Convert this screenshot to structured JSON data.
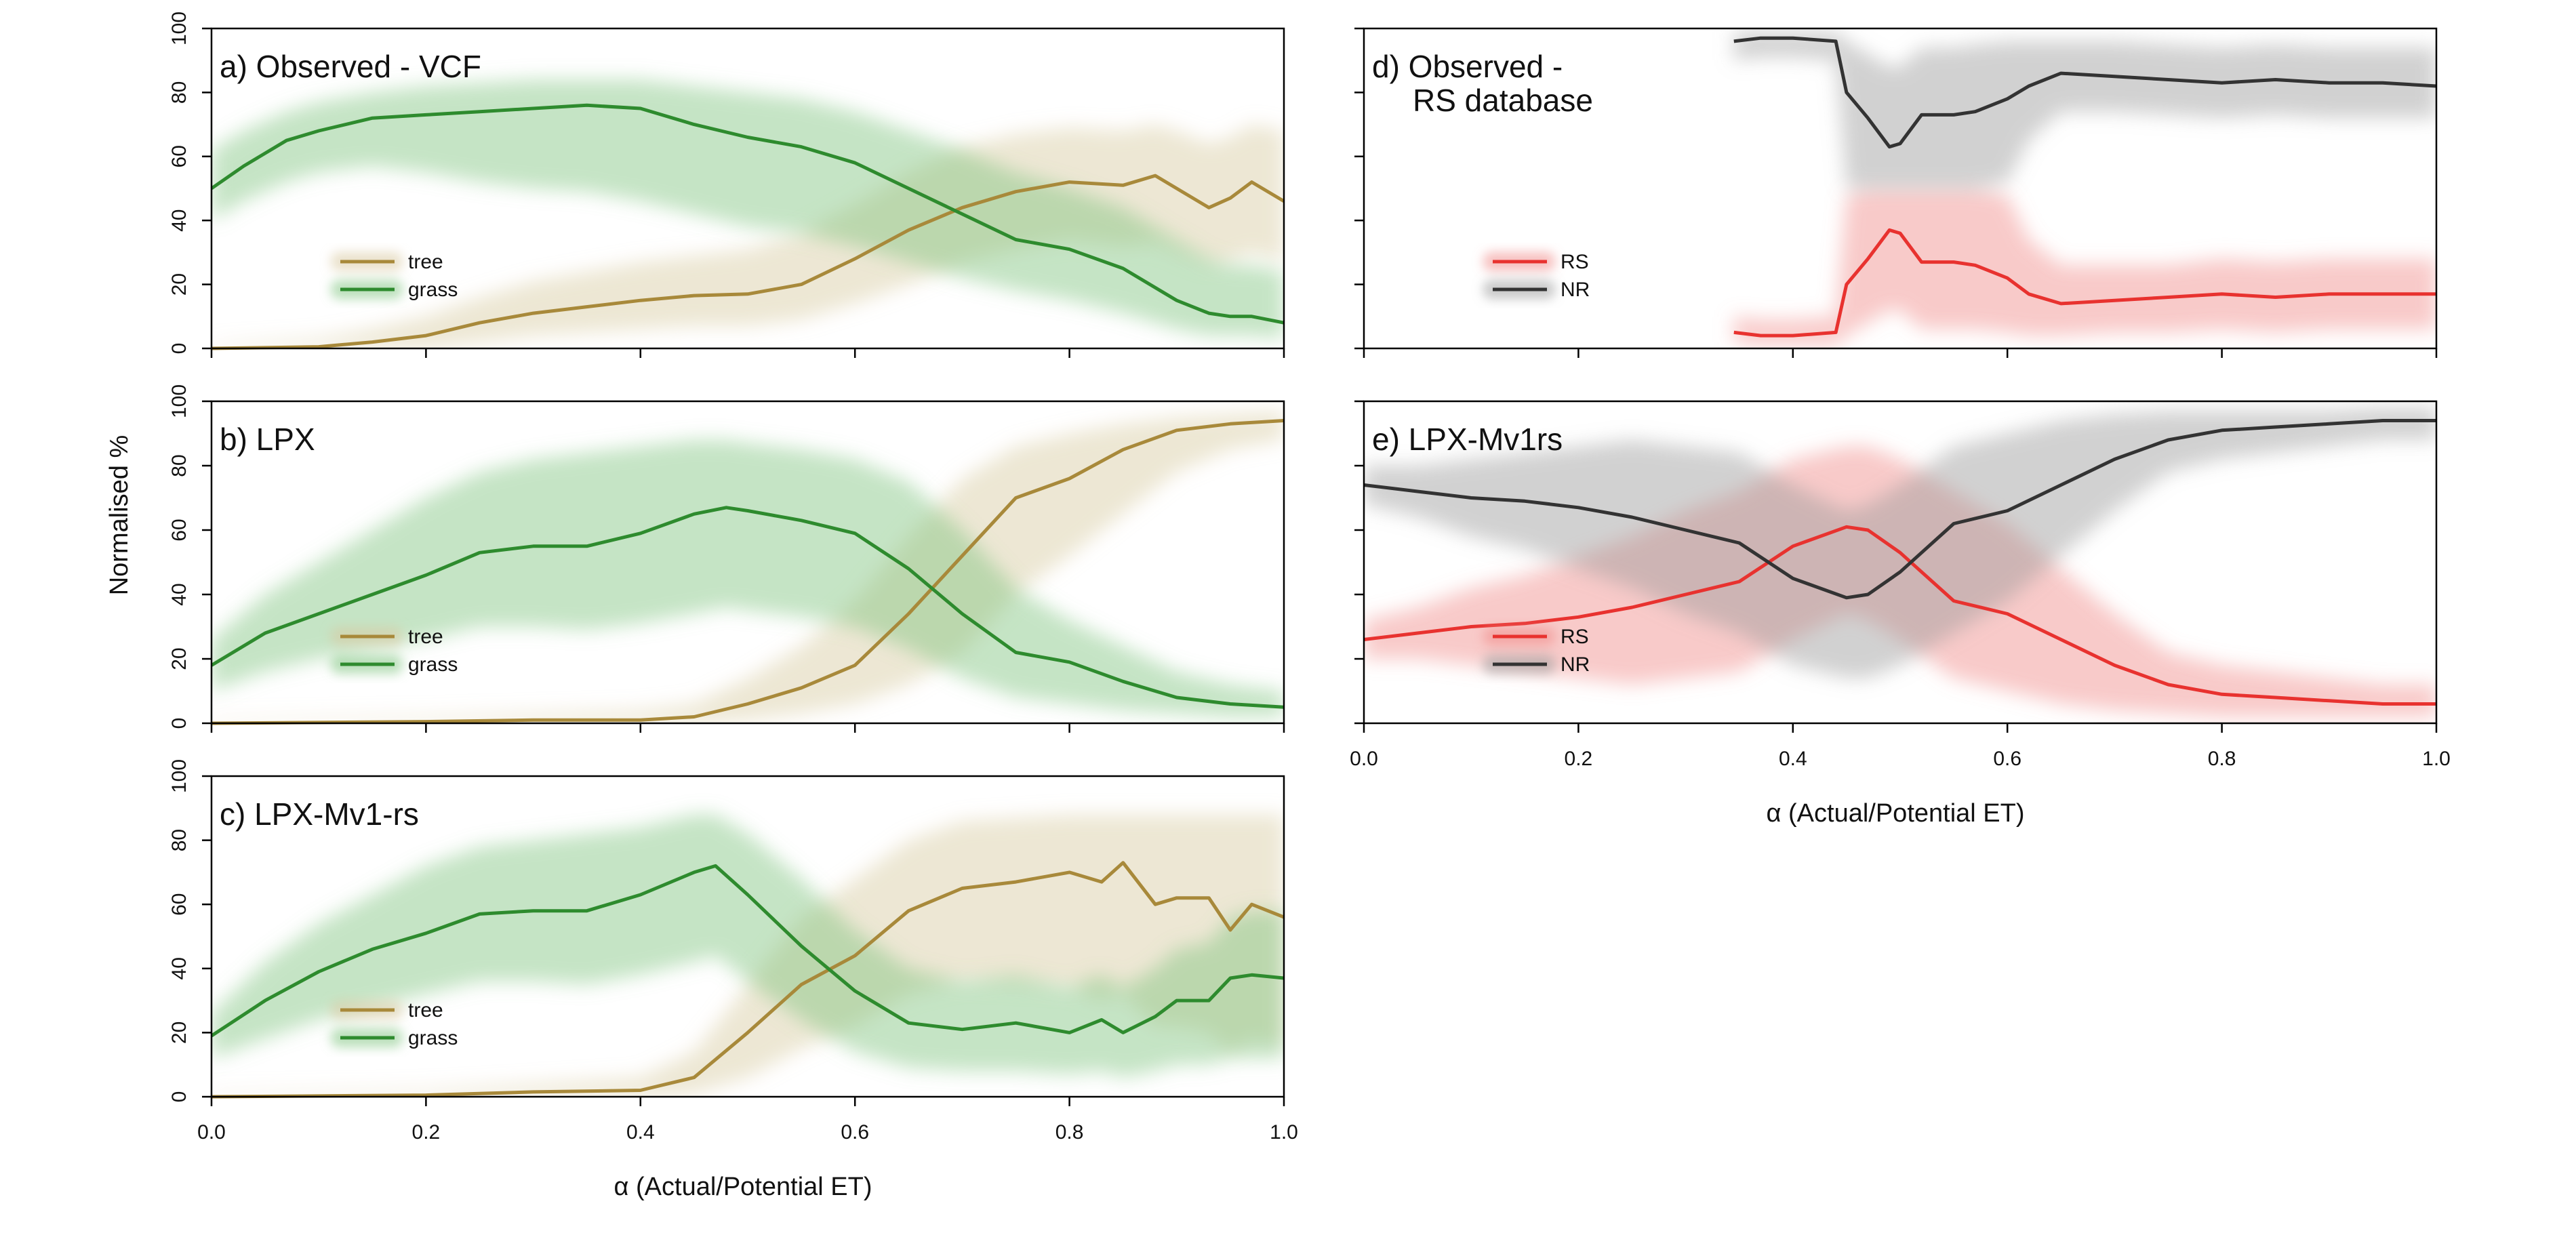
{
  "figure": {
    "y_axis_label": "Normalised %",
    "x_axis_label": "α (Actual/Potential ET)"
  },
  "colors": {
    "tree": "#A8893A",
    "grass": "#2E8B2E",
    "rs": "#E8322F",
    "nr": "#333333",
    "tree_band": "#D8C9A0",
    "grass_band": "#7FC47F",
    "rs_band": "#F08A88",
    "nr_band": "#9A9A9A"
  },
  "chart_data": [
    {
      "id": "a",
      "type": "line",
      "title": "a) Observed - VCF",
      "xlim": [
        0,
        1
      ],
      "ylim": [
        0,
        100
      ],
      "x_ticks": [
        "0.0",
        "0.2",
        "0.4",
        "0.6",
        "0.8",
        "1.0"
      ],
      "y_ticks": [
        "0",
        "20",
        "40",
        "60",
        "80",
        "100"
      ],
      "x_tick_labels_shown": false,
      "legend": {
        "placement": "lower-left",
        "entries": [
          "tree",
          "grass"
        ]
      },
      "series": [
        {
          "name": "tree",
          "color_key": "tree",
          "band_key": "tree_band",
          "x": [
            0,
            0.1,
            0.15,
            0.2,
            0.25,
            0.3,
            0.35,
            0.4,
            0.45,
            0.5,
            0.55,
            0.6,
            0.65,
            0.7,
            0.75,
            0.8,
            0.85,
            0.88,
            0.9,
            0.93,
            0.95,
            0.97,
            1.0
          ],
          "y": [
            0,
            0.5,
            2,
            4,
            8,
            11,
            13,
            15,
            16.5,
            17,
            20,
            28,
            37,
            44,
            49,
            52,
            51,
            54,
            50,
            44,
            47,
            52,
            46
          ],
          "lower": [
            0,
            0,
            0,
            0,
            2,
            4,
            5,
            6,
            7,
            7,
            9,
            14,
            20,
            27,
            31,
            34,
            32,
            33,
            30,
            26,
            27,
            30,
            27
          ],
          "upper": [
            1,
            3,
            6,
            10,
            16,
            21,
            24,
            27,
            29,
            31,
            36,
            45,
            55,
            63,
            67,
            69,
            68,
            70,
            68,
            64,
            66,
            70,
            68
          ]
        },
        {
          "name": "grass",
          "color_key": "grass",
          "band_key": "grass_band",
          "x": [
            0,
            0.03,
            0.07,
            0.1,
            0.15,
            0.2,
            0.25,
            0.3,
            0.35,
            0.4,
            0.45,
            0.5,
            0.55,
            0.6,
            0.65,
            0.7,
            0.75,
            0.8,
            0.85,
            0.9,
            0.93,
            0.95,
            0.97,
            1.0
          ],
          "y": [
            50,
            57,
            65,
            68,
            72,
            73,
            74,
            75,
            76,
            75,
            70,
            66,
            63,
            58,
            50,
            42,
            34,
            31,
            25,
            15,
            11,
            10,
            10,
            8
          ],
          "lower": [
            40,
            46,
            52,
            55,
            57,
            55,
            52,
            50,
            49,
            46,
            42,
            38,
            36,
            32,
            27,
            22,
            18,
            15,
            11,
            6,
            4,
            4,
            4,
            3
          ],
          "upper": [
            62,
            68,
            74,
            77,
            80,
            82,
            83,
            84,
            84,
            84,
            82,
            80,
            78,
            74,
            68,
            62,
            55,
            50,
            44,
            34,
            28,
            26,
            26,
            24
          ]
        }
      ]
    },
    {
      "id": "b",
      "type": "line",
      "title": "b) LPX",
      "xlim": [
        0,
        1
      ],
      "ylim": [
        0,
        100
      ],
      "x_ticks": [
        "0.0",
        "0.2",
        "0.4",
        "0.6",
        "0.8",
        "1.0"
      ],
      "y_ticks": [
        "0",
        "20",
        "40",
        "60",
        "80",
        "100"
      ],
      "x_tick_labels_shown": false,
      "legend": {
        "placement": "lower-left",
        "entries": [
          "tree",
          "grass"
        ]
      },
      "series": [
        {
          "name": "tree",
          "color_key": "tree",
          "band_key": "tree_band",
          "x": [
            0,
            0.2,
            0.3,
            0.4,
            0.45,
            0.5,
            0.55,
            0.6,
            0.65,
            0.7,
            0.75,
            0.8,
            0.85,
            0.9,
            0.95,
            1.0
          ],
          "y": [
            0,
            0.5,
            1,
            1,
            2,
            6,
            11,
            18,
            34,
            52,
            70,
            76,
            85,
            91,
            93,
            94
          ],
          "lower": [
            0,
            0,
            0,
            0,
            0,
            1,
            3,
            6,
            12,
            22,
            40,
            52,
            65,
            78,
            85,
            88
          ],
          "upper": [
            1,
            2,
            3,
            4,
            6,
            14,
            24,
            38,
            58,
            76,
            86,
            90,
            93,
            95,
            96,
            97
          ]
        },
        {
          "name": "grass",
          "color_key": "grass",
          "band_key": "grass_band",
          "x": [
            0,
            0.05,
            0.1,
            0.15,
            0.2,
            0.25,
            0.3,
            0.35,
            0.4,
            0.45,
            0.48,
            0.5,
            0.55,
            0.6,
            0.65,
            0.7,
            0.75,
            0.8,
            0.85,
            0.9,
            0.95,
            1.0
          ],
          "y": [
            18,
            28,
            34,
            40,
            46,
            53,
            55,
            55,
            59,
            65,
            67,
            66,
            63,
            59,
            48,
            34,
            22,
            19,
            13,
            8,
            6,
            5
          ],
          "lower": [
            10,
            16,
            20,
            23,
            26,
            30,
            30,
            29,
            31,
            34,
            36,
            35,
            33,
            30,
            23,
            14,
            8,
            6,
            4,
            3,
            2,
            2
          ],
          "upper": [
            26,
            40,
            50,
            60,
            70,
            78,
            82,
            84,
            86,
            88,
            88,
            87,
            85,
            82,
            75,
            60,
            42,
            32,
            24,
            16,
            12,
            10
          ]
        }
      ]
    },
    {
      "id": "c",
      "type": "line",
      "title": "c) LPX-Mv1-rs",
      "xlim": [
        0,
        1
      ],
      "ylim": [
        0,
        100
      ],
      "x_ticks": [
        "0.0",
        "0.2",
        "0.4",
        "0.6",
        "0.8",
        "1.0"
      ],
      "y_ticks": [
        "0",
        "20",
        "40",
        "60",
        "80",
        "100"
      ],
      "x_tick_labels_shown": true,
      "legend": {
        "placement": "lower-left",
        "entries": [
          "tree",
          "grass"
        ]
      },
      "series": [
        {
          "name": "tree",
          "color_key": "tree",
          "band_key": "tree_band",
          "x": [
            0,
            0.2,
            0.3,
            0.4,
            0.45,
            0.5,
            0.55,
            0.6,
            0.65,
            0.7,
            0.75,
            0.8,
            0.83,
            0.85,
            0.88,
            0.9,
            0.93,
            0.95,
            0.97,
            1.0
          ],
          "y": [
            0,
            0.5,
            1.5,
            2,
            6,
            20,
            35,
            44,
            58,
            65,
            67,
            70,
            67,
            73,
            60,
            62,
            62,
            52,
            60,
            56
          ],
          "lower": [
            0,
            0,
            0,
            0,
            1,
            6,
            15,
            22,
            32,
            36,
            35,
            34,
            30,
            32,
            22,
            22,
            20,
            14,
            18,
            16
          ],
          "upper": [
            1,
            2,
            4,
            6,
            14,
            35,
            56,
            68,
            80,
            86,
            87,
            88,
            88,
            88,
            88,
            88,
            88,
            88,
            88,
            88
          ]
        },
        {
          "name": "grass",
          "color_key": "grass",
          "band_key": "grass_band",
          "x": [
            0,
            0.05,
            0.1,
            0.15,
            0.2,
            0.25,
            0.3,
            0.35,
            0.4,
            0.45,
            0.47,
            0.5,
            0.55,
            0.6,
            0.65,
            0.7,
            0.75,
            0.8,
            0.83,
            0.85,
            0.88,
            0.9,
            0.93,
            0.95,
            0.97,
            1.0
          ],
          "y": [
            19,
            30,
            39,
            46,
            51,
            57,
            58,
            58,
            63,
            70,
            72,
            63,
            47,
            33,
            23,
            21,
            23,
            20,
            24,
            20,
            25,
            30,
            30,
            37,
            38,
            37
          ],
          "lower": [
            12,
            18,
            24,
            28,
            32,
            36,
            36,
            35,
            38,
            42,
            44,
            36,
            24,
            14,
            9,
            8,
            8,
            7,
            8,
            6,
            8,
            10,
            10,
            12,
            12,
            12
          ],
          "upper": [
            26,
            42,
            54,
            63,
            72,
            78,
            80,
            82,
            84,
            88,
            88,
            82,
            68,
            52,
            40,
            36,
            38,
            34,
            38,
            34,
            40,
            46,
            48,
            56,
            58,
            58
          ]
        }
      ]
    },
    {
      "id": "d",
      "type": "line",
      "title": "d) Observed -",
      "title_line2": "RS database",
      "xlim": [
        0,
        1
      ],
      "ylim": [
        0,
        100
      ],
      "x_ticks": [
        "0.0",
        "0.2",
        "0.4",
        "0.6",
        "0.8",
        "1.0"
      ],
      "y_ticks": [
        "0",
        "20",
        "40",
        "60",
        "80",
        "100"
      ],
      "x_tick_labels_shown": false,
      "y_tick_labels_shown": false,
      "legend": {
        "placement": "lower-left",
        "entries": [
          "RS",
          "NR"
        ]
      },
      "series": [
        {
          "name": "RS",
          "color_key": "rs",
          "band_key": "rs_band",
          "x": [
            0.345,
            0.37,
            0.4,
            0.44,
            0.45,
            0.47,
            0.49,
            0.5,
            0.52,
            0.55,
            0.57,
            0.6,
            0.62,
            0.65,
            0.7,
            0.75,
            0.8,
            0.85,
            0.9,
            0.95,
            1.0
          ],
          "y": [
            5,
            4,
            4,
            5,
            20,
            28,
            37,
            36,
            27,
            27,
            26,
            22,
            17,
            14,
            15,
            16,
            17,
            16,
            17,
            17,
            17
          ],
          "lower": [
            2,
            1,
            1,
            1,
            4,
            8,
            12,
            12,
            6,
            6,
            6,
            5,
            4,
            4,
            5,
            5,
            6,
            5,
            6,
            6,
            6
          ],
          "upper": [
            10,
            9,
            9,
            10,
            48,
            50,
            50,
            50,
            50,
            50,
            50,
            48,
            34,
            26,
            26,
            26,
            28,
            27,
            28,
            28,
            28
          ]
        },
        {
          "name": "NR",
          "color_key": "nr",
          "band_key": "nr_band",
          "x": [
            0.345,
            0.37,
            0.4,
            0.44,
            0.45,
            0.47,
            0.49,
            0.5,
            0.52,
            0.55,
            0.57,
            0.6,
            0.62,
            0.65,
            0.7,
            0.75,
            0.8,
            0.85,
            0.9,
            0.95,
            1.0
          ],
          "y": [
            96,
            97,
            97,
            96,
            80,
            72,
            63,
            64,
            73,
            73,
            74,
            78,
            82,
            86,
            85,
            84,
            83,
            84,
            83,
            83,
            82
          ],
          "lower": [
            90,
            91,
            91,
            90,
            50,
            50,
            50,
            50,
            50,
            50,
            50,
            52,
            65,
            74,
            74,
            73,
            72,
            73,
            72,
            72,
            72
          ],
          "upper": [
            99,
            99,
            99,
            99,
            96,
            92,
            88,
            88,
            94,
            94,
            95,
            96,
            96,
            96,
            96,
            95,
            94,
            95,
            94,
            94,
            94
          ]
        }
      ]
    },
    {
      "id": "e",
      "type": "line",
      "title": "e) LPX-Mv1rs",
      "xlim": [
        0,
        1
      ],
      "ylim": [
        0,
        100
      ],
      "x_ticks": [
        "0.0",
        "0.2",
        "0.4",
        "0.6",
        "0.8",
        "1.0"
      ],
      "y_ticks": [
        "0",
        "20",
        "40",
        "60",
        "80",
        "100"
      ],
      "x_tick_labels_shown": true,
      "y_tick_labels_shown": false,
      "legend": {
        "placement": "lower-left",
        "entries": [
          "RS",
          "NR"
        ]
      },
      "series": [
        {
          "name": "RS",
          "color_key": "rs",
          "band_key": "rs_band",
          "x": [
            0,
            0.05,
            0.1,
            0.15,
            0.2,
            0.25,
            0.3,
            0.35,
            0.4,
            0.45,
            0.47,
            0.5,
            0.55,
            0.6,
            0.65,
            0.7,
            0.75,
            0.8,
            0.85,
            0.9,
            0.95,
            1.0
          ],
          "y": [
            26,
            28,
            30,
            31,
            33,
            36,
            40,
            44,
            55,
            61,
            60,
            53,
            38,
            34,
            26,
            18,
            12,
            9,
            8,
            7,
            6,
            6
          ],
          "lower": [
            20,
            20,
            18,
            16,
            14,
            12,
            14,
            16,
            26,
            34,
            32,
            26,
            14,
            10,
            6,
            4,
            3,
            2,
            2,
            2,
            2,
            2
          ],
          "upper": [
            32,
            36,
            42,
            46,
            52,
            58,
            66,
            72,
            82,
            86,
            86,
            82,
            72,
            62,
            48,
            34,
            22,
            18,
            16,
            14,
            12,
            12
          ]
        },
        {
          "name": "NR",
          "color_key": "nr",
          "band_key": "nr_band",
          "x": [
            0,
            0.05,
            0.1,
            0.15,
            0.2,
            0.25,
            0.3,
            0.35,
            0.4,
            0.45,
            0.47,
            0.5,
            0.55,
            0.6,
            0.65,
            0.7,
            0.75,
            0.8,
            0.85,
            0.9,
            0.95,
            1.0
          ],
          "y": [
            74,
            72,
            70,
            69,
            67,
            64,
            60,
            56,
            45,
            39,
            40,
            47,
            62,
            66,
            74,
            82,
            88,
            91,
            92,
            93,
            94,
            94
          ],
          "lower": [
            68,
            64,
            58,
            54,
            48,
            42,
            34,
            28,
            18,
            14,
            14,
            18,
            28,
            38,
            52,
            66,
            78,
            82,
            84,
            86,
            88,
            88
          ],
          "upper": [
            80,
            80,
            82,
            84,
            86,
            88,
            86,
            84,
            74,
            66,
            68,
            74,
            86,
            90,
            94,
            96,
            97,
            97,
            97,
            97,
            98,
            98
          ]
        }
      ]
    }
  ]
}
